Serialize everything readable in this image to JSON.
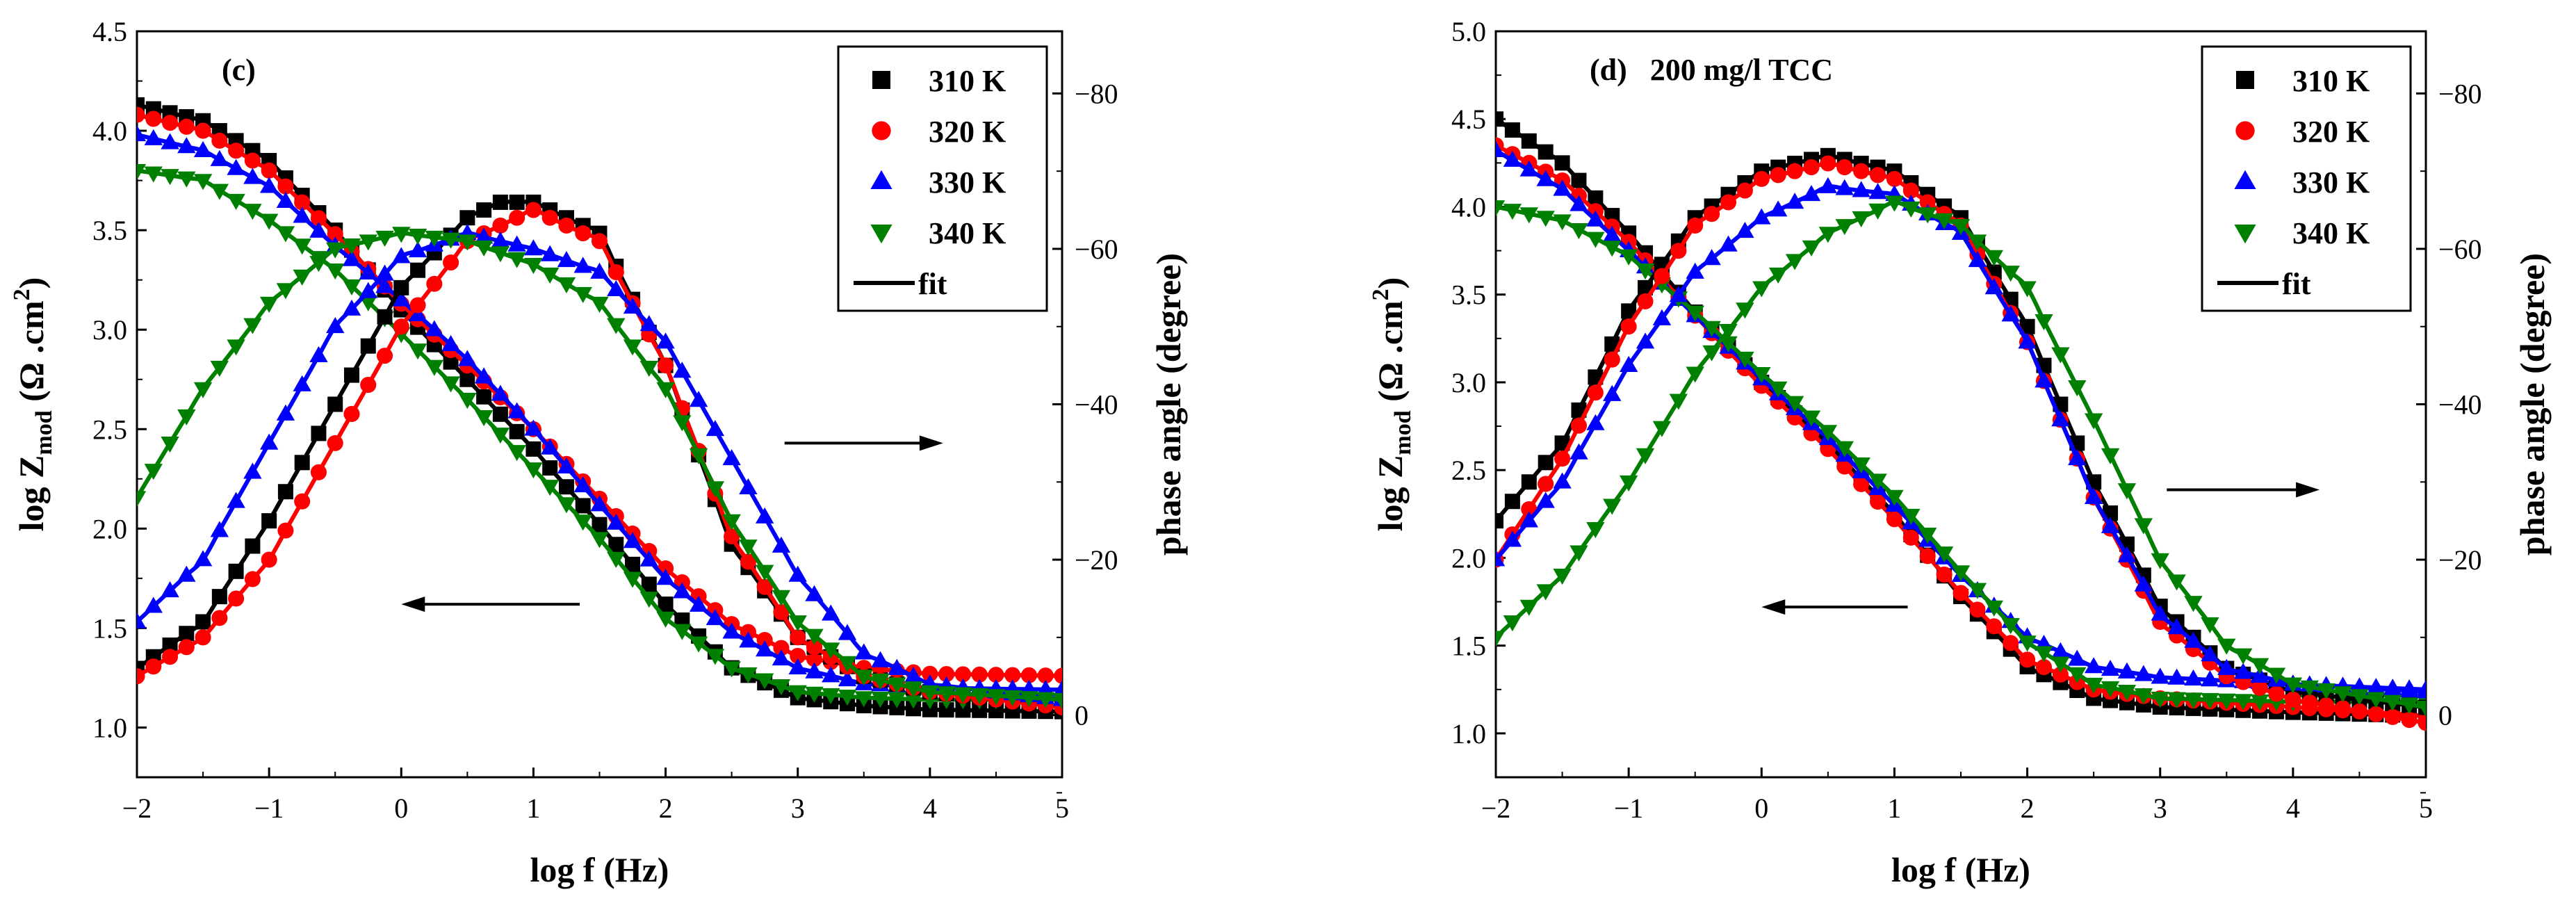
{
  "chart_data": [
    {
      "type": "scatter",
      "panel_label": "(c)",
      "xlabel": "log f (Hz)",
      "ylabel_left": "log Z",
      "ylabel_left_sub": "mod",
      "ylabel_left_unit_a": " (Ω .cm",
      "ylabel_left_unit_sup": "2",
      "ylabel_left_unit_b": ")",
      "ylabel_right": "phase angle (degree)",
      "xlim": [
        -2,
        5
      ],
      "ylim_left": [
        0.75,
        4.5
      ],
      "ylim_right": [
        8,
        -88
      ],
      "x_ticks": [
        "−2",
        "−1",
        "0",
        "1",
        "2",
        "3",
        "4",
        "5"
      ],
      "y_left_ticks": [
        "1.0",
        "1.5",
        "2.0",
        "2.5",
        "3.0",
        "3.5",
        "4.0",
        "4.5"
      ],
      "y_right_ticks": [
        "−80",
        "−60",
        "−40",
        "−20",
        "0"
      ],
      "legend": {
        "position": "top-right",
        "entries": [
          "310 K",
          "320 K",
          "330 K",
          "340 K"
        ],
        "fit_label": "fit"
      },
      "annotations": [
        {
          "type": "arrow",
          "direction": "right",
          "x_start": 2.9,
          "x_end": 4.1,
          "y_right": -35
        },
        {
          "type": "arrow",
          "direction": "left",
          "x_start": 1.35,
          "x_end": 0.0,
          "y_left": 1.62
        }
      ],
      "modulus": [
        {
          "name": "310 K",
          "color": "#000000",
          "marker": "square",
          "points": [
            [
              -2,
              4.13
            ],
            [
              -1.5,
              4.05
            ],
            [
              -1,
              3.85
            ],
            [
              -0.5,
              3.5
            ],
            [
              0,
              3.1
            ],
            [
              0.5,
              2.75
            ],
            [
              1,
              2.4
            ],
            [
              1.5,
              2.02
            ],
            [
              2,
              1.62
            ],
            [
              2.5,
              1.3
            ],
            [
              3,
              1.15
            ],
            [
              3.5,
              1.11
            ],
            [
              4,
              1.09
            ],
            [
              5,
              1.08
            ]
          ]
        },
        {
          "name": "320 K",
          "color": "#ff0000",
          "marker": "circle",
          "points": [
            [
              -2,
              4.08
            ],
            [
              -1.5,
              4.0
            ],
            [
              -1,
              3.8
            ],
            [
              -0.5,
              3.48
            ],
            [
              0,
              3.13
            ],
            [
              0.5,
              2.82
            ],
            [
              1,
              2.5
            ],
            [
              1.5,
              2.15
            ],
            [
              2,
              1.8
            ],
            [
              2.5,
              1.52
            ],
            [
              3,
              1.36
            ],
            [
              3.5,
              1.3
            ],
            [
              4,
              1.27
            ],
            [
              5,
              1.26
            ]
          ]
        },
        {
          "name": "330 K",
          "color": "#0000ff",
          "marker": "triangle-up",
          "points": [
            [
              -2,
              3.98
            ],
            [
              -1.5,
              3.9
            ],
            [
              -1,
              3.72
            ],
            [
              -0.5,
              3.42
            ],
            [
              0,
              3.15
            ],
            [
              0.5,
              2.85
            ],
            [
              1,
              2.5
            ],
            [
              1.5,
              2.12
            ],
            [
              2,
              1.75
            ],
            [
              2.5,
              1.48
            ],
            [
              3,
              1.3
            ],
            [
              3.5,
              1.22
            ],
            [
              4,
              1.2
            ],
            [
              5,
              1.19
            ]
          ]
        },
        {
          "name": "340 K",
          "color": "#008000",
          "marker": "triangle-down",
          "points": [
            [
              -2,
              3.8
            ],
            [
              -1.5,
              3.75
            ],
            [
              -1,
              3.55
            ],
            [
              -0.5,
              3.3
            ],
            [
              0,
              2.98
            ],
            [
              0.5,
              2.65
            ],
            [
              1,
              2.3
            ],
            [
              1.5,
              1.95
            ],
            [
              2,
              1.55
            ],
            [
              2.5,
              1.3
            ],
            [
              3,
              1.18
            ],
            [
              3.5,
              1.15
            ],
            [
              4,
              1.14
            ],
            [
              5,
              1.14
            ]
          ]
        }
      ],
      "phase": [
        {
          "name": "310 K",
          "color": "#000000",
          "marker": "square",
          "points": [
            [
              -2,
              -6
            ],
            [
              -1.5,
              -12
            ],
            [
              -1,
              -25
            ],
            [
              -0.5,
              -40
            ],
            [
              0,
              -55
            ],
            [
              0.5,
              -64
            ],
            [
              0.75,
              -66
            ],
            [
              1,
              -66
            ],
            [
              1.5,
              -62
            ],
            [
              2,
              -45
            ],
            [
              2.5,
              -22
            ],
            [
              3,
              -10
            ],
            [
              3.5,
              -5
            ],
            [
              4,
              -3
            ],
            [
              5,
              -1
            ]
          ]
        },
        {
          "name": "320 K",
          "color": "#ff0000",
          "marker": "circle",
          "points": [
            [
              -2,
              -5
            ],
            [
              -1.5,
              -10
            ],
            [
              -1,
              -20
            ],
            [
              -0.5,
              -35
            ],
            [
              0,
              -50
            ],
            [
              0.5,
              -61
            ],
            [
              1,
              -65
            ],
            [
              1.5,
              -61
            ],
            [
              2,
              -45
            ],
            [
              2.5,
              -23
            ],
            [
              3,
              -10
            ],
            [
              3.5,
              -5
            ],
            [
              4,
              -3
            ],
            [
              5,
              -1
            ]
          ]
        },
        {
          "name": "330 K",
          "color": "#0000ff",
          "marker": "triangle-up",
          "points": [
            [
              -2,
              -12
            ],
            [
              -1.5,
              -20
            ],
            [
              -1,
              -35
            ],
            [
              -0.5,
              -50
            ],
            [
              0,
              -59
            ],
            [
              0.5,
              -62
            ],
            [
              1,
              -60
            ],
            [
              1.5,
              -57
            ],
            [
              2,
              -48
            ],
            [
              2.5,
              -33
            ],
            [
              3,
              -18
            ],
            [
              3.5,
              -8
            ],
            [
              4,
              -4
            ],
            [
              5,
              -2
            ]
          ]
        },
        {
          "name": "340 K",
          "color": "#008000",
          "marker": "triangle-down",
          "points": [
            [
              -2,
              -28
            ],
            [
              -1.5,
              -42
            ],
            [
              -1,
              -53
            ],
            [
              -0.5,
              -60
            ],
            [
              0,
              -62
            ],
            [
              0.5,
              -61
            ],
            [
              1,
              -58
            ],
            [
              1.5,
              -53
            ],
            [
              2,
              -42
            ],
            [
              2.5,
              -25
            ],
            [
              3,
              -12
            ],
            [
              3.5,
              -5
            ],
            [
              4,
              -3
            ],
            [
              5,
              -2
            ]
          ]
        }
      ]
    },
    {
      "type": "scatter",
      "panel_label": "(d)   200 mg/l TCC",
      "xlabel": "log f (Hz)",
      "ylabel_left": "log Z",
      "ylabel_left_sub": "mod",
      "ylabel_left_unit_a": " (Ω .cm",
      "ylabel_left_unit_sup": "2",
      "ylabel_left_unit_b": ")",
      "ylabel_right": "phase angle (degree)",
      "xlim": [
        -2,
        5
      ],
      "ylim_left": [
        0.75,
        5.0
      ],
      "ylim_right": [
        8,
        -88
      ],
      "x_ticks": [
        "−2",
        "−1",
        "0",
        "1",
        "2",
        "3",
        "4",
        "5"
      ],
      "y_left_ticks": [
        "1.0",
        "1.5",
        "2.0",
        "2.5",
        "3.0",
        "3.5",
        "4.0",
        "4.5",
        "5.0"
      ],
      "y_right_ticks": [
        "−80",
        "−60",
        "−40",
        "−20",
        "0"
      ],
      "legend": {
        "position": "top-right",
        "entries": [
          "310 K",
          "320 K",
          "330 K",
          "340 K"
        ],
        "fit_label": "fit"
      },
      "annotations": [
        {
          "type": "arrow",
          "direction": "right",
          "x_start": 3.05,
          "x_end": 4.2,
          "y_right": -29
        },
        {
          "type": "arrow",
          "direction": "left",
          "x_start": 1.1,
          "x_end": 0.0,
          "y_left": 1.72
        }
      ],
      "modulus": [
        {
          "name": "310 K",
          "color": "#000000",
          "marker": "square",
          "points": [
            [
              -2,
              4.5
            ],
            [
              -1.5,
              4.25
            ],
            [
              -1,
              3.85
            ],
            [
              -0.5,
              3.4
            ],
            [
              0,
              3.0
            ],
            [
              0.5,
              2.65
            ],
            [
              1,
              2.25
            ],
            [
              1.5,
              1.78
            ],
            [
              2,
              1.38
            ],
            [
              2.5,
              1.2
            ],
            [
              3,
              1.15
            ],
            [
              4,
              1.12
            ],
            [
              5,
              1.1
            ]
          ]
        },
        {
          "name": "320 K",
          "color": "#ff0000",
          "marker": "circle",
          "points": [
            [
              -2,
              4.35
            ],
            [
              -1.5,
              4.15
            ],
            [
              -1,
              3.8
            ],
            [
              -0.5,
              3.38
            ],
            [
              0,
              2.98
            ],
            [
              0.5,
              2.62
            ],
            [
              1,
              2.22
            ],
            [
              1.5,
              1.8
            ],
            [
              2,
              1.42
            ],
            [
              2.5,
              1.25
            ],
            [
              3,
              1.2
            ],
            [
              4,
              1.15
            ],
            [
              5,
              1.1
            ]
          ]
        },
        {
          "name": "330 K",
          "color": "#0000ff",
          "marker": "triangle-up",
          "points": [
            [
              -2,
              4.32
            ],
            [
              -1.5,
              4.1
            ],
            [
              -1,
              3.75
            ],
            [
              -0.5,
              3.38
            ],
            [
              0,
              3.02
            ],
            [
              0.5,
              2.68
            ],
            [
              1,
              2.3
            ],
            [
              1.5,
              1.9
            ],
            [
              2,
              1.55
            ],
            [
              2.5,
              1.38
            ],
            [
              3,
              1.32
            ],
            [
              4,
              1.28
            ],
            [
              5,
              1.25
            ]
          ]
        },
        {
          "name": "340 K",
          "color": "#008000",
          "marker": "triangle-down",
          "points": [
            [
              -2,
              4.0
            ],
            [
              -1.5,
              3.92
            ],
            [
              -1,
              3.72
            ],
            [
              -0.5,
              3.4
            ],
            [
              0,
              3.05
            ],
            [
              0.5,
              2.72
            ],
            [
              1,
              2.35
            ],
            [
              1.5,
              1.92
            ],
            [
              2,
              1.52
            ],
            [
              2.5,
              1.28
            ],
            [
              3,
              1.2
            ],
            [
              4,
              1.18
            ],
            [
              5,
              1.18
            ]
          ]
        }
      ],
      "phase": [
        {
          "name": "310 K",
          "color": "#000000",
          "marker": "square",
          "points": [
            [
              -2,
              -25
            ],
            [
              -1.5,
              -35
            ],
            [
              -1,
              -52
            ],
            [
              -0.5,
              -64
            ],
            [
              0,
              -70
            ],
            [
              0.5,
              -72
            ],
            [
              1,
              -70
            ],
            [
              1.5,
              -64
            ],
            [
              2,
              -50
            ],
            [
              2.5,
              -30
            ],
            [
              3,
              -14
            ],
            [
              3.5,
              -6
            ],
            [
              4,
              -3
            ],
            [
              5,
              -1
            ]
          ]
        },
        {
          "name": "320 K",
          "color": "#ff0000",
          "marker": "circle",
          "points": [
            [
              -2,
              -20
            ],
            [
              -1.5,
              -33
            ],
            [
              -1,
              -50
            ],
            [
              -0.5,
              -63
            ],
            [
              0,
              -69
            ],
            [
              0.5,
              -71
            ],
            [
              1,
              -69
            ],
            [
              1.5,
              -63
            ],
            [
              2,
              -48
            ],
            [
              2.5,
              -28
            ],
            [
              3,
              -12
            ],
            [
              3.5,
              -5
            ],
            [
              4,
              -2
            ],
            [
              5,
              1
            ]
          ]
        },
        {
          "name": "330 K",
          "color": "#0000ff",
          "marker": "triangle-up",
          "points": [
            [
              -2,
              -20
            ],
            [
              -1.5,
              -30
            ],
            [
              -1,
              -45
            ],
            [
              -0.5,
              -57
            ],
            [
              0,
              -64
            ],
            [
              0.5,
              -68
            ],
            [
              1,
              -67
            ],
            [
              1.5,
              -62
            ],
            [
              2,
              -48
            ],
            [
              2.5,
              -28
            ],
            [
              3,
              -13
            ],
            [
              3.5,
              -6
            ],
            [
              4,
              -4
            ],
            [
              5,
              -3
            ]
          ]
        },
        {
          "name": "340 K",
          "color": "#008000",
          "marker": "triangle-down",
          "points": [
            [
              -2,
              -10
            ],
            [
              -1.5,
              -18
            ],
            [
              -1,
              -30
            ],
            [
              -0.5,
              -44
            ],
            [
              0,
              -55
            ],
            [
              0.5,
              -62
            ],
            [
              1,
              -66
            ],
            [
              1.5,
              -63
            ],
            [
              2,
              -55
            ],
            [
              2.5,
              -38
            ],
            [
              3,
              -20
            ],
            [
              3.5,
              -9
            ],
            [
              4,
              -4
            ],
            [
              5,
              -1
            ]
          ]
        }
      ]
    }
  ]
}
